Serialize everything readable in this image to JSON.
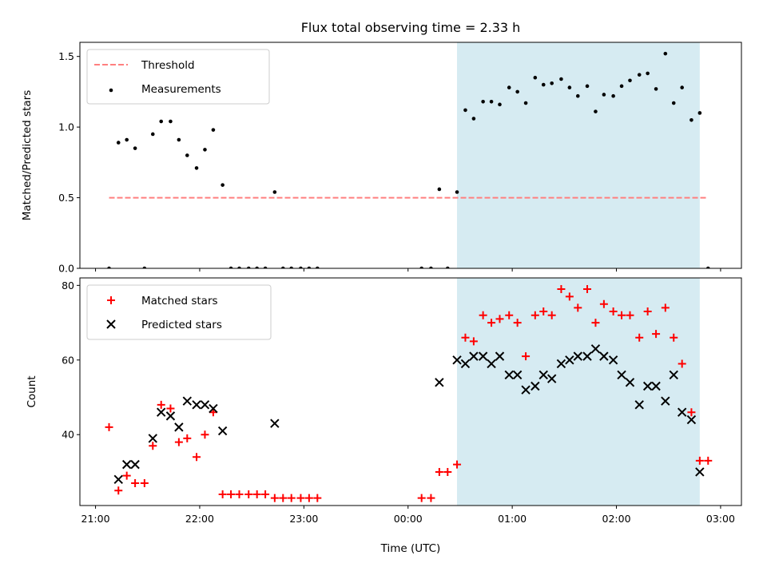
{
  "chart_data": {
    "title": "Flux total observing time = 2.33 h",
    "xlabel": "Time (UTC)",
    "x_tick_labels": [
      "21:00",
      "22:00",
      "23:00",
      "00:00",
      "01:00",
      "02:00",
      "03:00"
    ],
    "x_tick_hours": [
      0,
      1,
      2,
      3,
      4,
      5,
      6
    ],
    "xlim_hours": [
      -0.15,
      6.2
    ],
    "x_origin": "21:00",
    "observing_window_hours": [
      3.47,
      5.8
    ],
    "window_color": "#add8e6",
    "panels": [
      {
        "type": "scatter",
        "ylabel": "Matched/Predicted stars",
        "ylim": [
          0,
          1.6
        ],
        "y_ticks": [
          0.0,
          0.5,
          1.0,
          1.5
        ],
        "y_tick_labels": [
          "0.0",
          "0.5",
          "1.0",
          "1.5"
        ],
        "legend": {
          "placement": "top-left",
          "entries": [
            "Threshold",
            "Measurements"
          ]
        },
        "series": [
          {
            "name": "Threshold",
            "kind": "dashed-line",
            "color": "#ff7f7f",
            "x": [
              0.13,
              5.88
            ],
            "y": [
              0.5,
              0.5
            ]
          },
          {
            "name": "Measurements",
            "kind": "dot",
            "color": "#000000",
            "x": [
              0.13,
              0.22,
              0.3,
              0.38,
              0.47,
              0.55,
              0.63,
              0.72,
              0.8,
              0.88,
              0.97,
              1.05,
              1.13,
              1.22,
              1.3,
              1.38,
              1.47,
              1.55,
              1.63,
              1.72,
              1.8,
              1.88,
              1.97,
              2.05,
              2.13,
              3.13,
              3.22,
              3.3,
              3.38,
              3.47,
              3.55,
              3.63,
              3.72,
              3.8,
              3.88,
              3.97,
              4.05,
              4.13,
              4.22,
              4.3,
              4.38,
              4.47,
              4.55,
              4.63,
              4.72,
              4.8,
              4.88,
              4.97,
              5.05,
              5.13,
              5.22,
              5.3,
              5.38,
              5.47,
              5.55,
              5.63,
              5.72,
              5.8,
              5.88
            ],
            "y": [
              0.0,
              0.89,
              0.91,
              0.85,
              0.0,
              0.95,
              1.04,
              1.04,
              0.91,
              0.8,
              0.71,
              0.84,
              0.98,
              0.59,
              0.0,
              0.0,
              0.0,
              0.0,
              0.0,
              0.54,
              0.0,
              0.0,
              0.0,
              0.0,
              0.0,
              0.0,
              0.0,
              0.56,
              0.0,
              0.54,
              1.12,
              1.06,
              1.18,
              1.18,
              1.16,
              1.28,
              1.25,
              1.17,
              1.35,
              1.3,
              1.31,
              1.34,
              1.28,
              1.22,
              1.29,
              1.11,
              1.23,
              1.22,
              1.29,
              1.33,
              1.37,
              1.38,
              1.27,
              1.52,
              1.17,
              1.28,
              1.05,
              1.1,
              0.0
            ]
          }
        ]
      },
      {
        "type": "scatter",
        "ylabel": "Count",
        "ylim": [
          21,
          82
        ],
        "y_ticks": [
          40,
          60,
          80
        ],
        "y_tick_labels": [
          "40",
          "60",
          "80"
        ],
        "legend": {
          "placement": "top-left",
          "entries": [
            "Matched stars",
            "Predicted stars"
          ]
        },
        "series": [
          {
            "name": "Matched stars",
            "kind": "plus",
            "color": "#ff0000",
            "x": [
              0.13,
              0.22,
              0.3,
              0.38,
              0.47,
              0.55,
              0.63,
              0.72,
              0.8,
              0.88,
              0.97,
              1.05,
              1.13,
              1.22,
              1.3,
              1.38,
              1.47,
              1.55,
              1.63,
              1.72,
              1.8,
              1.88,
              1.97,
              2.05,
              2.13,
              3.13,
              3.22,
              3.3,
              3.38,
              3.47,
              3.55,
              3.63,
              3.72,
              3.8,
              3.88,
              3.97,
              4.05,
              4.13,
              4.22,
              4.3,
              4.38,
              4.47,
              4.55,
              4.63,
              4.72,
              4.8,
              4.88,
              4.97,
              5.05,
              5.13,
              5.22,
              5.3,
              5.38,
              5.47,
              5.55,
              5.63,
              5.72,
              5.8,
              5.88
            ],
            "y": [
              42,
              25,
              29,
              27,
              27,
              37,
              48,
              47,
              38,
              39,
              34,
              40,
              46,
              24,
              24,
              24,
              24,
              24,
              24,
              23,
              23,
              23,
              23,
              23,
              23,
              23,
              23,
              30,
              30,
              32,
              66,
              65,
              72,
              70,
              71,
              72,
              70,
              61,
              72,
              73,
              72,
              79,
              77,
              74,
              79,
              70,
              75,
              73,
              72,
              72,
              66,
              73,
              67,
              74,
              66,
              59,
              46,
              33,
              33
            ]
          },
          {
            "name": "Predicted stars",
            "kind": "x",
            "color": "#000000",
            "x": [
              0.22,
              0.3,
              0.38,
              0.55,
              0.63,
              0.72,
              0.8,
              0.88,
              0.97,
              1.05,
              1.13,
              1.22,
              1.72,
              3.3,
              3.47,
              3.55,
              3.63,
              3.72,
              3.8,
              3.88,
              3.97,
              4.05,
              4.13,
              4.22,
              4.3,
              4.38,
              4.47,
              4.55,
              4.63,
              4.72,
              4.8,
              4.88,
              4.97,
              5.05,
              5.13,
              5.22,
              5.3,
              5.38,
              5.47,
              5.55,
              5.63,
              5.72,
              5.8
            ],
            "y": [
              28,
              32,
              32,
              39,
              46,
              45,
              42,
              49,
              48,
              48,
              47,
              41,
              43,
              54,
              60,
              59,
              61,
              61,
              59,
              61,
              56,
              56,
              52,
              53,
              56,
              55,
              59,
              60,
              61,
              61,
              63,
              61,
              60,
              56,
              54,
              48,
              53,
              53,
              49,
              56,
              46,
              44,
              30
            ]
          }
        ]
      }
    ]
  }
}
